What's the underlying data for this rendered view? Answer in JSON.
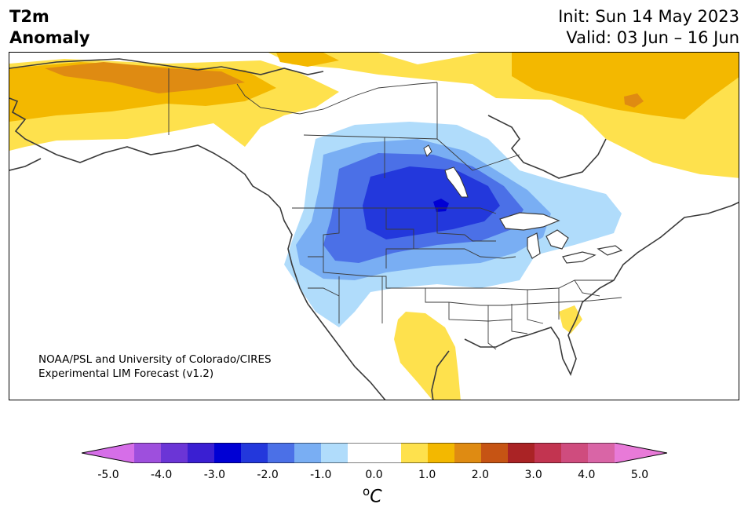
{
  "header": {
    "title_line1": "T2m",
    "title_line2": "Anomaly",
    "init": "Init: Sun 14 May 2023",
    "valid": "Valid: 03 Jun – 16 Jun"
  },
  "credit": {
    "line1": "NOAA/PSL and University of Colorado/CIRES",
    "line2": "Experimental LIM Forecast (v1.2)"
  },
  "colorbar": {
    "colors": [
      "#d66ee8",
      "#9e4fdd",
      "#6b35d6",
      "#3a1fd2",
      "#0000d4",
      "#2338dc",
      "#4b70e7",
      "#79aef3",
      "#b0dcfb",
      "#ffffff",
      "#ffffff",
      "#fee14d",
      "#f3b800",
      "#df8b12",
      "#c65414",
      "#aa2325",
      "#c23450",
      "#cf4c7e",
      "#d965a6",
      "#e87ad8"
    ],
    "tick_labels": [
      "-5.0",
      "-4.0",
      "-3.0",
      "-2.0",
      "-1.0",
      "0.0",
      "1.0",
      "2.0",
      "3.0",
      "4.0",
      "5.0"
    ],
    "unit_sup": "o",
    "unit": "C"
  }
}
